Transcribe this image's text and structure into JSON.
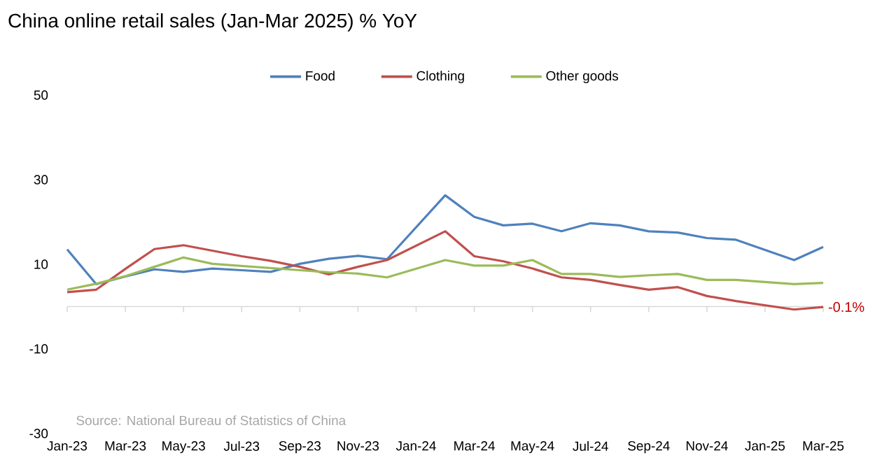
{
  "chart_data": {
    "type": "line",
    "title": "China online retail sales (Jan-Mar 2025) % YoY",
    "x": [
      "2023-01",
      "2023-02",
      "2023-03",
      "2023-04",
      "2023-05",
      "2023-06",
      "2023-07",
      "2023-08",
      "2023-09",
      "2023-10",
      "2023-11",
      "2023-12",
      "2024-02",
      "2024-03",
      "2024-04",
      "2024-05",
      "2024-06",
      "2024-07",
      "2024-08",
      "2024-09",
      "2024-10",
      "2024-11",
      "2024-12",
      "2025-02",
      "2025-03"
    ],
    "series": [
      {
        "name": "Food",
        "color": "#4f81bd",
        "values": [
          13.5,
          5.3,
          7.1,
          8.8,
          8.2,
          9.0,
          8.6,
          8.2,
          10.1,
          11.3,
          12.0,
          11.2,
          26.3,
          21.2,
          19.2,
          19.6,
          17.8,
          19.7,
          19.2,
          17.8,
          17.5,
          16.2,
          15.8,
          11.0,
          14.1
        ]
      },
      {
        "name": "Clothing",
        "color": "#c0504d",
        "values": [
          3.4,
          4.0,
          8.9,
          13.6,
          14.5,
          13.2,
          11.9,
          10.8,
          9.4,
          7.6,
          9.4,
          11.0,
          17.8,
          11.9,
          10.7,
          9.0,
          6.9,
          6.3,
          5.1,
          4.0,
          4.6,
          2.5,
          1.3,
          -0.7,
          -0.1
        ]
      },
      {
        "name": "Other goods",
        "color": "#9bbb59",
        "values": [
          4.0,
          5.4,
          7.2,
          9.4,
          11.6,
          10.1,
          9.6,
          9.1,
          8.6,
          8.1,
          7.8,
          6.9,
          11.0,
          9.7,
          9.7,
          11.0,
          7.7,
          7.7,
          7.0,
          7.4,
          7.7,
          6.3,
          6.3,
          5.3,
          5.6
        ]
      }
    ],
    "xlim": [
      "2023-01",
      "2025-03"
    ],
    "xticks": [
      {
        "value": "2023-01",
        "label": "Jan-23"
      },
      {
        "value": "2023-03",
        "label": "Mar-23"
      },
      {
        "value": "2023-05",
        "label": "May-23"
      },
      {
        "value": "2023-07",
        "label": "Jul-23"
      },
      {
        "value": "2023-09",
        "label": "Sep-23"
      },
      {
        "value": "2023-11",
        "label": "Nov-23"
      },
      {
        "value": "2024-01",
        "label": "Jan-24"
      },
      {
        "value": "2024-03",
        "label": "Mar-24"
      },
      {
        "value": "2024-05",
        "label": "May-24"
      },
      {
        "value": "2024-07",
        "label": "Jul-24"
      },
      {
        "value": "2024-09",
        "label": "Sep-24"
      },
      {
        "value": "2024-11",
        "label": "Nov-24"
      },
      {
        "value": "2025-01",
        "label": "Jan-25"
      },
      {
        "value": "2025-03",
        "label": "Mar-25"
      }
    ],
    "ylim": [
      -30,
      50
    ],
    "yticks": [
      -30,
      -10,
      10,
      30,
      50
    ],
    "annotations": [
      "Source: National Bureau of Statistics of China",
      {
        "text": "-0.1%",
        "x": "2025-03",
        "y": -0.1
      }
    ],
    "legend": "top",
    "grid": false,
    "line_style": "solid"
  }
}
